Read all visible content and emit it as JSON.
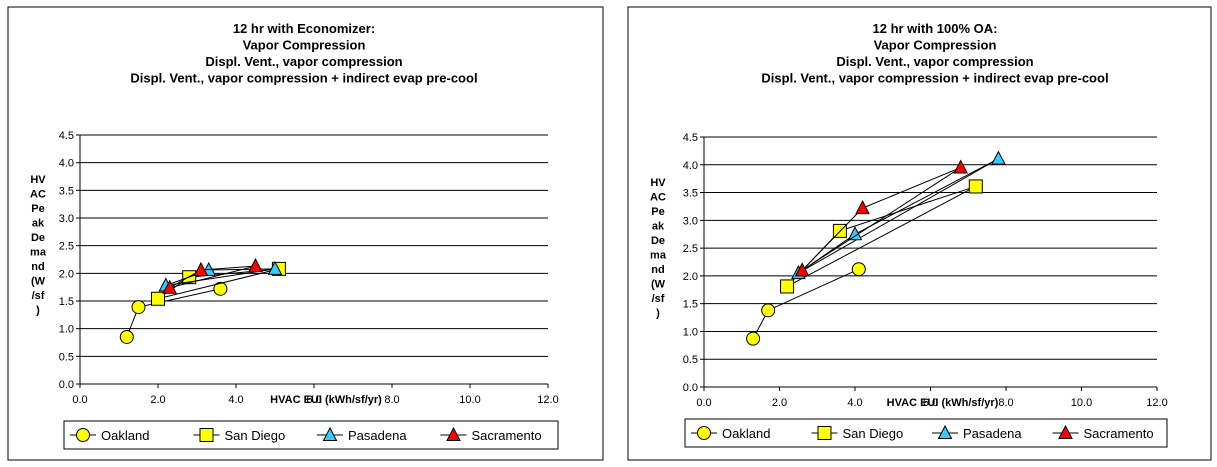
{
  "chart_data": [
    {
      "type": "scatter",
      "title_lines": [
        "12 hr with Economizer:",
        "Vapor Compression",
        "Displ. Vent., vapor compression",
        "Displ. Vent., vapor compression + indirect evap pre-cool"
      ],
      "ylabel_lines": [
        "HV",
        "AC",
        "Pe",
        "ak",
        "De",
        "ma",
        "nd",
        "(W",
        "/sf",
        ")"
      ],
      "xlabel": "HVAC EUI (kWh/sf/yr)",
      "xlim": [
        0,
        12
      ],
      "ylim": [
        0,
        4.5
      ],
      "xticks": [
        "0.0",
        "2.0",
        "4.0",
        "6.0",
        "8.0",
        "10.0",
        "12.0"
      ],
      "yticks": [
        "0.0",
        "0.5",
        "1.0",
        "1.5",
        "2.0",
        "2.5",
        "3.0",
        "3.5",
        "4.0",
        "4.5"
      ],
      "grid": "horizontal",
      "legend_position": "bottom",
      "series": [
        {
          "name": "Oakland",
          "marker": "circle",
          "color": "#ffff00",
          "points": [
            [
              1.2,
              0.85
            ],
            [
              1.5,
              1.39
            ],
            [
              3.6,
              1.72
            ]
          ],
          "edges": [
            [
              0,
              1
            ],
            [
              1,
              2
            ]
          ]
        },
        {
          "name": "San Diego",
          "marker": "square",
          "color": "#ffff00",
          "points": [
            [
              2.0,
              1.54
            ],
            [
              2.8,
              1.93
            ],
            [
              5.1,
              2.08
            ]
          ],
          "edges": [
            [
              0,
              1
            ],
            [
              1,
              2
            ],
            [
              0,
              2
            ]
          ]
        },
        {
          "name": "Pasadena",
          "marker": "triangle",
          "color": "#33ccff",
          "points": [
            [
              2.2,
              1.78
            ],
            [
              3.3,
              2.06
            ],
            [
              5.0,
              2.08
            ]
          ],
          "edges": [
            [
              0,
              1
            ],
            [
              1,
              2
            ],
            [
              0,
              2
            ]
          ]
        },
        {
          "name": "Sacramento",
          "marker": "triangle",
          "color": "#ff0000",
          "points": [
            [
              2.3,
              1.74
            ],
            [
              3.1,
              2.06
            ],
            [
              4.5,
              2.13
            ]
          ],
          "edges": [
            [
              0,
              1
            ],
            [
              1,
              2
            ],
            [
              0,
              2
            ]
          ]
        }
      ]
    },
    {
      "type": "scatter",
      "title_lines": [
        "12 hr with 100% OA:",
        "Vapor Compression",
        "Displ. Vent., vapor compression",
        "Displ. Vent., vapor compression + indirect evap pre-cool"
      ],
      "ylabel_lines": [
        "HV",
        "AC",
        "Pe",
        "ak",
        "De",
        "ma",
        "nd",
        "(W",
        "/sf",
        ")"
      ],
      "xlabel": "HVAC EUI (kWh/sf/yr)",
      "xlim": [
        0,
        12
      ],
      "ylim": [
        0,
        4.5
      ],
      "xticks": [
        "0.0",
        "2.0",
        "4.0",
        "6.0",
        "8.0",
        "10.0",
        "12.0"
      ],
      "yticks": [
        "0.0",
        "0.5",
        "1.0",
        "1.5",
        "2.0",
        "2.5",
        "3.0",
        "3.5",
        "4.0",
        "4.5"
      ],
      "grid": "horizontal",
      "legend_position": "bottom",
      "series": [
        {
          "name": "Oakland",
          "marker": "circle",
          "color": "#ffff00",
          "points": [
            [
              1.3,
              0.87
            ],
            [
              1.7,
              1.38
            ],
            [
              4.1,
              2.12
            ]
          ],
          "edges": [
            [
              0,
              1
            ],
            [
              1,
              2
            ]
          ]
        },
        {
          "name": "San Diego",
          "marker": "square",
          "color": "#ffff00",
          "points": [
            [
              2.2,
              1.81
            ],
            [
              3.6,
              2.81
            ],
            [
              7.2,
              3.61
            ]
          ],
          "edges": [
            [
              0,
              1
            ],
            [
              1,
              2
            ],
            [
              0,
              2
            ]
          ]
        },
        {
          "name": "Pasadena",
          "marker": "triangle",
          "color": "#33ccff",
          "points": [
            [
              2.5,
              2.05
            ],
            [
              4.0,
              2.75
            ],
            [
              7.8,
              4.11
            ]
          ],
          "edges": [
            [
              0,
              1
            ],
            [
              1,
              2
            ],
            [
              0,
              2
            ]
          ]
        },
        {
          "name": "Sacramento",
          "marker": "triangle",
          "color": "#ff0000",
          "points": [
            [
              2.6,
              2.1
            ],
            [
              4.2,
              3.22
            ],
            [
              6.8,
              3.95
            ]
          ],
          "edges": [
            [
              0,
              1
            ],
            [
              1,
              2
            ],
            [
              0,
              2
            ]
          ]
        }
      ]
    }
  ]
}
